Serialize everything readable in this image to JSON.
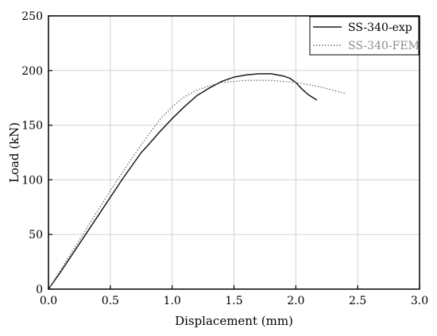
{
  "chart_data": {
    "type": "line",
    "xlabel": "Displacement (mm)",
    "ylabel": "Load (kN)",
    "xlim": [
      0,
      3.0
    ],
    "ylim": [
      0,
      250
    ],
    "xticks": [
      "0.0",
      "0.5",
      "1.0",
      "1.5",
      "2.0",
      "2.5",
      "3.0"
    ],
    "yticks": [
      "0",
      "50",
      "100",
      "150",
      "200",
      "250"
    ],
    "grid": true,
    "legend_position": "top-right",
    "series": [
      {
        "name": "SS-340-exp",
        "color": "#1a1a1a",
        "style": "solid",
        "x": [
          0.0,
          0.1,
          0.2,
          0.3,
          0.4,
          0.5,
          0.6,
          0.7,
          0.75,
          0.8,
          0.9,
          1.0,
          1.1,
          1.2,
          1.3,
          1.4,
          1.5,
          1.6,
          1.7,
          1.75,
          1.8,
          1.85,
          1.9,
          1.95,
          2.0,
          2.05,
          2.1,
          2.17
        ],
        "y": [
          0,
          16,
          33,
          50,
          67,
          84,
          101,
          117,
          125,
          131,
          144,
          156,
          167,
          177,
          184,
          190,
          194,
          196,
          197,
          197,
          197,
          196,
          195,
          193,
          189,
          183,
          178,
          173
        ]
      },
      {
        "name": "SS-340-FEM",
        "color": "#6e6e6e",
        "style": "dotted",
        "x": [
          0.0,
          0.1,
          0.2,
          0.3,
          0.4,
          0.5,
          0.6,
          0.7,
          0.8,
          0.9,
          1.0,
          1.1,
          1.2,
          1.3,
          1.4,
          1.5,
          1.6,
          1.7,
          1.8,
          1.9,
          2.0,
          2.1,
          2.2,
          2.3,
          2.4
        ],
        "y": [
          0,
          18,
          36,
          54,
          72,
          90,
          107,
          124,
          140,
          155,
          167,
          176,
          182,
          186,
          189,
          190,
          191,
          191,
          191,
          190,
          189,
          187,
          185,
          182,
          179
        ]
      }
    ]
  }
}
